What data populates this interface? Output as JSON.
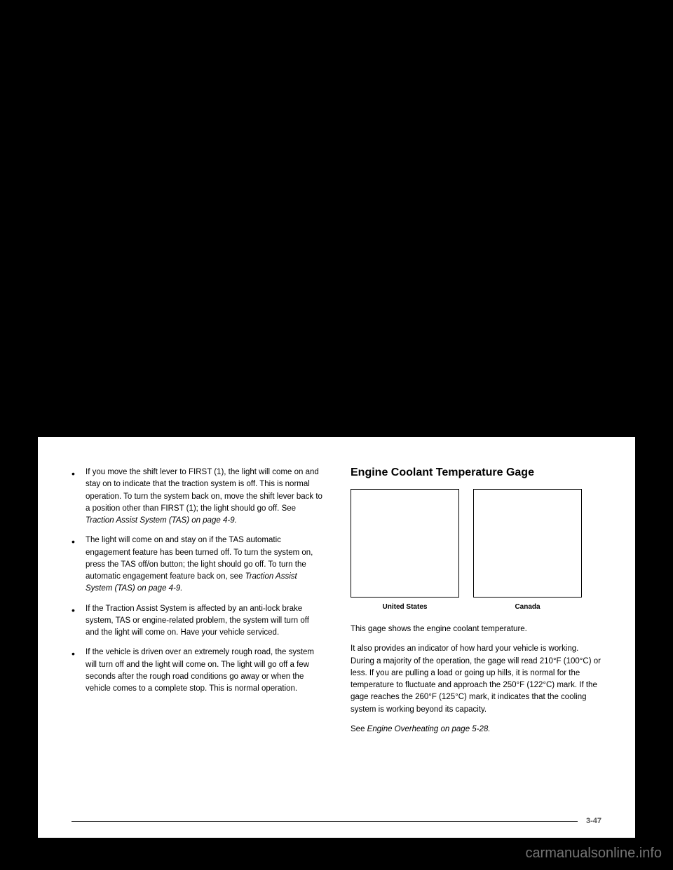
{
  "leftColumn": {
    "bullets": [
      {
        "textParts": [
          {
            "text": "If you move the shift lever to FIRST (1), the light will come on and stay on to indicate that the traction system is off. This is normal operation. To turn the system back on, move the shift lever back to a position other than FIRST (1); the light should go off. See ",
            "italic": false
          },
          {
            "text": "Traction Assist System (TAS) on page 4-9.",
            "italic": true
          }
        ]
      },
      {
        "textParts": [
          {
            "text": "The light will come on and stay on if the TAS automatic engagement feature has been turned off. To turn the system on, press the TAS off/on button; the light should go off. To turn the automatic engagement feature back on, see ",
            "italic": false
          },
          {
            "text": "Traction Assist System (TAS) on page 4-9.",
            "italic": true
          }
        ]
      },
      {
        "textParts": [
          {
            "text": "If the Traction Assist System is affected by an anti-lock brake system, TAS or engine-related problem, the system will turn off and the light will come on. Have your vehicle serviced.",
            "italic": false
          }
        ]
      },
      {
        "textParts": [
          {
            "text": "If the vehicle is driven over an extremely rough road, the system will turn off and the light will come on. The light will go off a few seconds after the rough road conditions go away or when the vehicle comes to a complete stop. This is normal operation.",
            "italic": false
          }
        ]
      }
    ]
  },
  "rightColumn": {
    "heading": "Engine Coolant Temperature Gage",
    "gaugeLabels": [
      "United States",
      "Canada"
    ],
    "paragraphs": [
      {
        "textParts": [
          {
            "text": "This gage shows the engine coolant temperature.",
            "italic": false
          }
        ]
      },
      {
        "textParts": [
          {
            "text": "It also provides an indicator of how hard your vehicle is working. During a majority of the operation, the gage will read 210°F (100°C) or less. If you are pulling a load or going up hills, it is normal for the temperature to fluctuate and approach the 250°F (122°C) mark. If the gage reaches the 260°F (125°C) mark, it indicates that the cooling system is working beyond its capacity.",
            "italic": false
          }
        ]
      },
      {
        "textParts": [
          {
            "text": "See ",
            "italic": false
          },
          {
            "text": "Engine Overheating on page 5-28.",
            "italic": true
          }
        ]
      }
    ]
  },
  "footer": {
    "pageNumber": "3-47"
  },
  "watermark": "carmanualsonline.info"
}
